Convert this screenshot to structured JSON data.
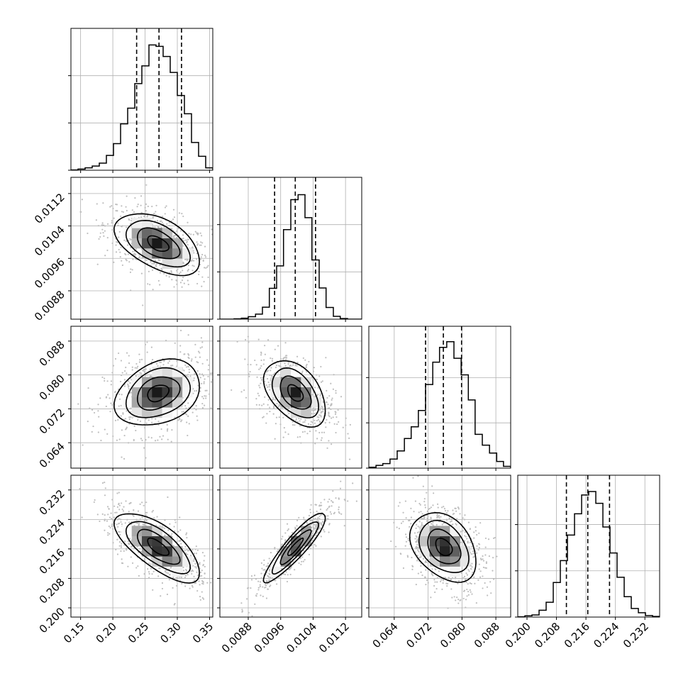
{
  "chart_data": {
    "type": "corner",
    "title": "",
    "parameters": [
      "",
      "",
      "",
      ""
    ],
    "ranges": [
      [
        0.135,
        0.355
      ],
      [
        0.0081,
        0.0116
      ],
      [
        0.058,
        0.0915
      ],
      [
        0.1975,
        0.236
      ]
    ],
    "ticks": [
      [
        0.15,
        0.2,
        0.25,
        0.3,
        0.35
      ],
      [
        0.0088,
        0.0096,
        0.0104,
        0.0112
      ],
      [
        0.064,
        0.072,
        0.08,
        0.088
      ],
      [
        0.2,
        0.208,
        0.216,
        0.224,
        0.232
      ]
    ],
    "tick_labels": [
      [
        "0.15",
        "0.20",
        "0.25",
        "0.30",
        "0.35"
      ],
      [
        "0.0088",
        "0.0096",
        "0.0104",
        "0.0112"
      ],
      [
        "0.064",
        "0.072",
        "0.080",
        "0.088"
      ],
      [
        "0.200",
        "0.208",
        "0.216",
        "0.224",
        "0.232"
      ]
    ],
    "quantiles": [
      [
        0.2369,
        0.2716,
        0.3065
      ],
      [
        0.00945,
        0.00996,
        0.01046
      ],
      [
        0.0714,
        0.0756,
        0.0799
      ],
      [
        0.2107,
        0.2165,
        0.2224
      ]
    ],
    "means": [
      0.27,
      0.00996,
      0.0757,
      0.2165
    ],
    "stds": [
      0.033,
      0.00038,
      0.0039,
      0.0047
    ],
    "correlations": {
      "1-0": -0.5,
      "2-0": 0.3,
      "2-1": -0.45,
      "3-0": -0.7,
      "3-1": 0.9,
      "3-2": -0.35
    },
    "histograms": [
      {
        "bin_edges": [
          0.135,
          0.146,
          0.157,
          0.168,
          0.179,
          0.19,
          0.201,
          0.212,
          0.223,
          0.234,
          0.245,
          0.256,
          0.267,
          0.278,
          0.289,
          0.3,
          0.311,
          0.322,
          0.333,
          0.344,
          0.355
        ],
        "counts": [
          1,
          4,
          8,
          14,
          24,
          50,
          90,
          157,
          210,
          293,
          353,
          424,
          419,
          385,
          331,
          253,
          191,
          94,
          47,
          8
        ]
      },
      {
        "bin_edges": [
          0.0081,
          0.00828,
          0.00845,
          0.00863,
          0.0088,
          0.00898,
          0.00915,
          0.00932,
          0.0095,
          0.00967,
          0.00985,
          0.01003,
          0.0102,
          0.01037,
          0.01055,
          0.01072,
          0.0109,
          0.01107,
          0.01125,
          0.01142,
          0.0116
        ],
        "counts": [
          0,
          0,
          1,
          3,
          8,
          16,
          38,
          98,
          169,
          284,
          379,
          395,
          322,
          188,
          99,
          37,
          9,
          2,
          0,
          0
        ]
      },
      {
        "bin_edges": [
          0.058,
          0.0597,
          0.0613,
          0.063,
          0.0647,
          0.0664,
          0.068,
          0.0697,
          0.0714,
          0.0731,
          0.0747,
          0.0764,
          0.0781,
          0.0798,
          0.0815,
          0.0831,
          0.0848,
          0.0865,
          0.0882,
          0.0898,
          0.0915
        ],
        "counts": [
          3,
          9,
          15,
          30,
          57,
          98,
          137,
          191,
          277,
          351,
          400,
          419,
          364,
          309,
          226,
          112,
          76,
          50,
          22,
          6
        ]
      },
      {
        "bin_edges": [
          0.1975,
          0.19943,
          0.20135,
          0.20328,
          0.2052,
          0.20713,
          0.20905,
          0.21098,
          0.2129,
          0.21483,
          0.21675,
          0.21868,
          0.2206,
          0.22253,
          0.22445,
          0.22638,
          0.2283,
          0.23023,
          0.23215,
          0.23408,
          0.236
        ],
        "counts": [
          1,
          4,
          7,
          22,
          48,
          112,
          183,
          266,
          335,
          396,
          407,
          369,
          292,
          208,
          129,
          66,
          28,
          14,
          5,
          2
        ]
      }
    ],
    "hist_ymax": [
      480,
      450,
      470,
      460
    ],
    "hist_yticks": [
      [
        0,
        160,
        320
      ],
      [
        0,
        150,
        300
      ],
      [
        0,
        150,
        300
      ],
      [
        0,
        150,
        300
      ]
    ],
    "contour_levels_sigma": [
      0.5,
      1.0,
      1.5,
      2.0
    ],
    "scatter_points_per_panel": 700,
    "grid": true,
    "colors": {
      "line": "#000000",
      "grid": "#b0b0b0",
      "point": "#bfbfbf"
    }
  }
}
